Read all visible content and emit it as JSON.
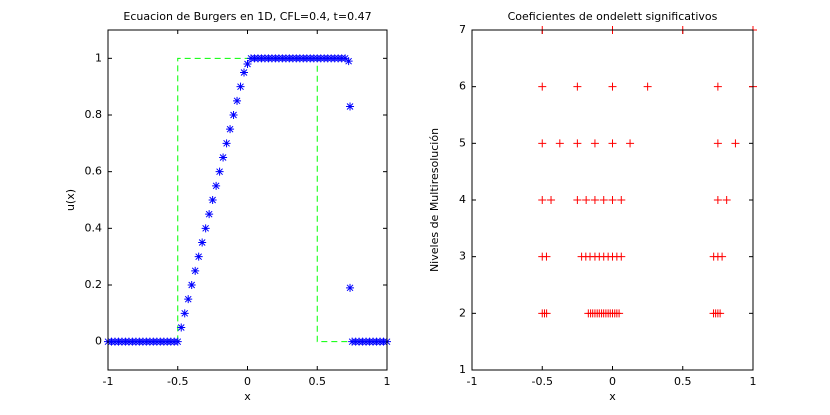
{
  "chart_data": [
    {
      "type": "scatter",
      "title": "Ecuacion de Burgers en 1D, CFL=0.4, t=0.47",
      "xlabel": "x",
      "ylabel": "u(x)",
      "xlim": [
        -1,
        1
      ],
      "ylim": [
        -0.1,
        1.1
      ],
      "xticks": [
        -1,
        -0.5,
        0,
        0.5,
        1
      ],
      "yticks": [
        0,
        0.2,
        0.4,
        0.6,
        0.8,
        1
      ],
      "series": [
        {
          "color": "#00ff00",
          "line_style": "dashed",
          "x": [
            -1,
            -0.5,
            -0.5,
            0.5,
            0.5,
            1
          ],
          "values": [
            0,
            0,
            1,
            1,
            0,
            0
          ]
        },
        {
          "color": "#0000ff",
          "marker": "asterisk",
          "x": [
            -1,
            -0.975,
            -0.95,
            -0.925,
            -0.9,
            -0.875,
            -0.85,
            -0.825,
            -0.8,
            -0.775,
            -0.75,
            -0.725,
            -0.7,
            -0.675,
            -0.65,
            -0.625,
            -0.6,
            -0.575,
            -0.55,
            -0.525,
            -0.5,
            -0.475,
            -0.45,
            -0.425,
            -0.4,
            -0.375,
            -0.35,
            -0.325,
            -0.3,
            -0.275,
            -0.25,
            -0.225,
            -0.2,
            -0.175,
            -0.15,
            -0.125,
            -0.1,
            -0.075,
            -0.05,
            -0.025,
            0,
            0.025,
            0.05,
            0.075,
            0.1,
            0.125,
            0.15,
            0.175,
            0.2,
            0.225,
            0.25,
            0.275,
            0.3,
            0.325,
            0.35,
            0.375,
            0.4,
            0.425,
            0.45,
            0.475,
            0.5,
            0.525,
            0.55,
            0.575,
            0.6,
            0.625,
            0.65,
            0.675,
            0.7,
            0.725,
            0.735,
            0.735,
            0.75,
            0.775,
            0.8,
            0.825,
            0.85,
            0.875,
            0.9,
            0.925,
            0.95,
            0.975,
            1
          ],
          "values": [
            0,
            0,
            0,
            0,
            0,
            0,
            0,
            0,
            0,
            0,
            0,
            0,
            0,
            0,
            0,
            0,
            0,
            0,
            0,
            0,
            0,
            0.05,
            0.1,
            0.15,
            0.2,
            0.25,
            0.3,
            0.35,
            0.4,
            0.45,
            0.5,
            0.55,
            0.6,
            0.65,
            0.7,
            0.75,
            0.8,
            0.85,
            0.9,
            0.95,
            0.98,
            1,
            1,
            1,
            1,
            1,
            1,
            1,
            1,
            1,
            1,
            1,
            1,
            1,
            1,
            1,
            1,
            1,
            1,
            1,
            1,
            1,
            1,
            1,
            1,
            1,
            1,
            1,
            1,
            0.99,
            0.83,
            0.19,
            0,
            0,
            0,
            0,
            0,
            0,
            0,
            0,
            0,
            0,
            0
          ]
        }
      ]
    },
    {
      "type": "scatter",
      "title": "Coeficientes de ondelett significativos",
      "xlabel": "x",
      "ylabel": "Niveles de Multiresolución",
      "xlim": [
        -1,
        1
      ],
      "ylim": [
        1,
        7
      ],
      "xticks": [
        -1,
        -0.5,
        0,
        0.5,
        1
      ],
      "yticks": [
        1,
        2,
        3,
        4,
        5,
        6,
        7
      ],
      "series": [
        {
          "color": "#ff0000",
          "marker": "plus",
          "x": [
            -0.5,
            0,
            0.5,
            1,
            -0.5,
            -0.25,
            0,
            0.25,
            0.75,
            1,
            -0.5,
            -0.375,
            -0.25,
            -0.125,
            0,
            0.125,
            0.75,
            0.875,
            -0.5,
            -0.4375,
            -0.25,
            -0.1875,
            -0.125,
            -0.0625,
            0,
            0.0625,
            0.75,
            0.8125,
            -0.5,
            -0.47,
            -0.22,
            -0.19,
            -0.16,
            -0.125,
            -0.094,
            -0.0625,
            -0.031,
            0,
            0.031,
            0.0625,
            0.72,
            0.75,
            0.78,
            -0.5,
            -0.484,
            -0.469,
            -0.172,
            -0.156,
            -0.141,
            -0.125,
            -0.109,
            -0.094,
            -0.078,
            -0.063,
            -0.047,
            -0.031,
            -0.016,
            0,
            0.016,
            0.031,
            0.047,
            0.719,
            0.734,
            0.75,
            0.766
          ],
          "values": [
            7,
            7,
            7,
            7,
            6,
            6,
            6,
            6,
            6,
            6,
            5,
            5,
            5,
            5,
            5,
            5,
            5,
            5,
            4,
            4,
            4,
            4,
            4,
            4,
            4,
            4,
            4,
            4,
            3,
            3,
            3,
            3,
            3,
            3,
            3,
            3,
            3,
            3,
            3,
            3,
            3,
            3,
            3,
            2,
            2,
            2,
            2,
            2,
            2,
            2,
            2,
            2,
            2,
            2,
            2,
            2,
            2,
            2,
            2,
            2,
            2,
            2,
            2,
            2,
            2
          ]
        }
      ]
    }
  ]
}
